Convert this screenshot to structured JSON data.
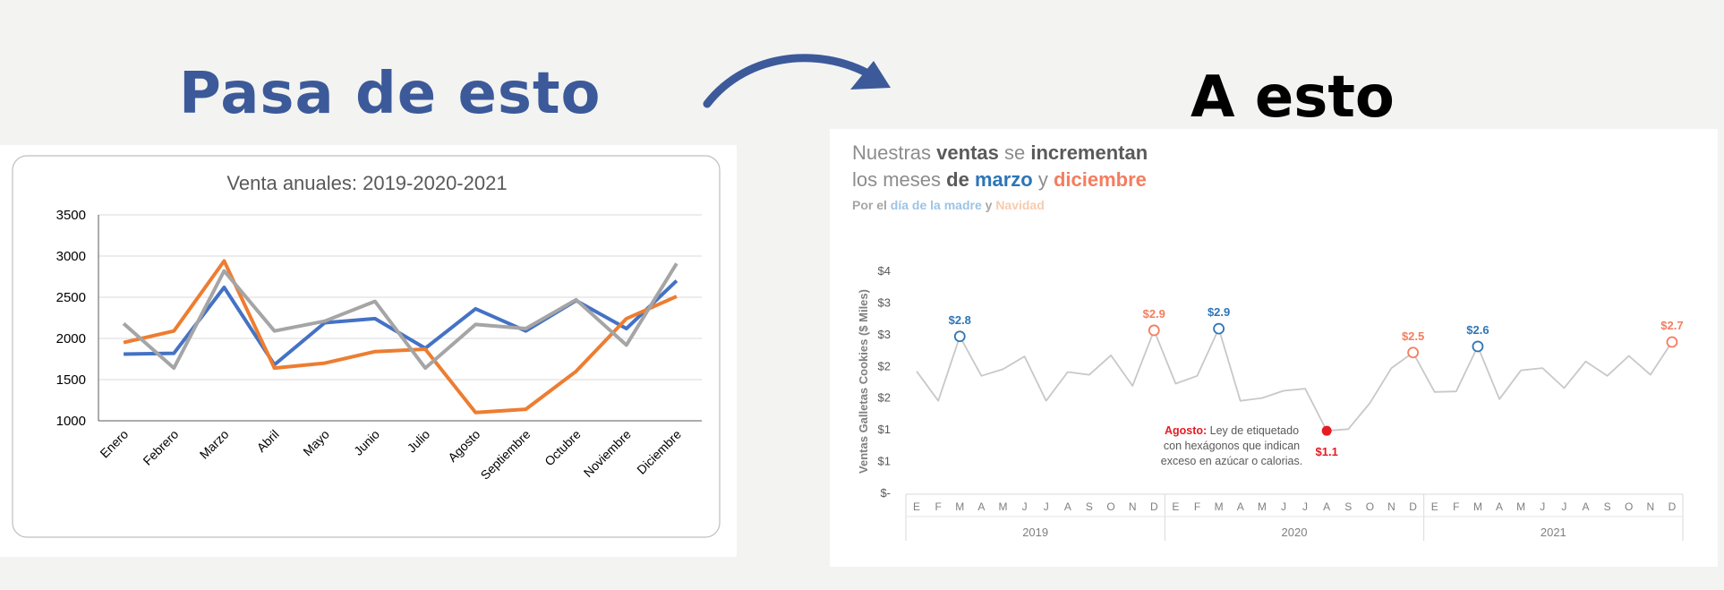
{
  "headings": {
    "left": "Pasa de esto",
    "right": "A esto"
  },
  "colors": {
    "heading_blue": "#3c5a9a",
    "series_2019": "#4472c4",
    "series_2020": "#ed7d31",
    "series_2021": "#a5a5a5",
    "marzo_blue": "#2e75b6",
    "diciembre_orange": "#f47d5f",
    "grey_line": "#c8c8c8",
    "agosto_red": "#e51c23"
  },
  "story_text": {
    "line1": [
      "Nuestras ",
      "ventas",
      " se ",
      "incrementan"
    ],
    "line2": [
      "los meses ",
      "de ",
      "marzo",
      " y ",
      "diciembre"
    ],
    "line3": [
      "Por el ",
      "día de la madre",
      " y ",
      "Navidad"
    ]
  },
  "chart_data": [
    {
      "type": "line",
      "title": "Venta anuales: 2019-2020-2021",
      "categories": [
        "Enero",
        "Febrero",
        "Marzo",
        "Abril",
        "Mayo",
        "Junio",
        "Julio",
        "Agosto",
        "Septiembre",
        "Octubre",
        "Noviembre",
        "Diciembre"
      ],
      "series": [
        {
          "name": "2019",
          "values": [
            1810,
            1820,
            2620,
            1680,
            2190,
            2240,
            1880,
            2360,
            2090,
            2460,
            2120,
            2700
          ]
        },
        {
          "name": "2020",
          "values": [
            1950,
            2090,
            2940,
            1640,
            1700,
            1840,
            1870,
            1100,
            1140,
            1600,
            2240,
            2510
          ]
        },
        {
          "name": "2021",
          "values": [
            2180,
            1640,
            2820,
            2090,
            2210,
            2450,
            1640,
            2170,
            2120,
            2470,
            1920,
            2910
          ]
        }
      ],
      "ylim": [
        1000,
        3500
      ],
      "yticks": [
        "1000",
        "1500",
        "2000",
        "2500",
        "3000",
        "3500"
      ],
      "grid": true,
      "legend": "none"
    },
    {
      "type": "line",
      "title": "",
      "ylabel": "Ventas Galletas Cookies ($ Miles)",
      "ytick_labels": [
        "$-",
        "$1",
        "$1",
        "$2",
        "$2",
        "$3",
        "$3",
        "$4"
      ],
      "ylim": [
        0,
        4
      ],
      "x_month_labels": [
        "E",
        "F",
        "M",
        "A",
        "M",
        "J",
        "J",
        "A",
        "S",
        "O",
        "N",
        "D",
        "E",
        "F",
        "M",
        "A",
        "M",
        "J",
        "J",
        "A",
        "S",
        "O",
        "N",
        "D",
        "E",
        "F",
        "M",
        "A",
        "M",
        "J",
        "J",
        "A",
        "S",
        "O",
        "N",
        "D"
      ],
      "years": [
        "2019",
        "2020",
        "2021"
      ],
      "values": [
        2.18,
        1.65,
        2.81,
        2.1,
        2.22,
        2.45,
        1.65,
        2.17,
        2.12,
        2.47,
        1.92,
        2.92,
        1.96,
        2.1,
        2.95,
        1.65,
        1.7,
        1.83,
        1.87,
        1.11,
        1.14,
        1.61,
        2.24,
        2.52,
        1.81,
        1.82,
        2.63,
        1.68,
        2.2,
        2.24,
        1.88,
        2.36,
        2.1,
        2.46,
        2.12,
        2.71
      ],
      "highlights": [
        {
          "index": 2,
          "label": "$2.8",
          "group": "marzo"
        },
        {
          "index": 11,
          "label": "$2.9",
          "group": "diciembre"
        },
        {
          "index": 14,
          "label": "$2.9",
          "group": "marzo"
        },
        {
          "index": 19,
          "label": "$1.1",
          "group": "agosto"
        },
        {
          "index": 23,
          "label": "$2.5",
          "group": "diciembre"
        },
        {
          "index": 26,
          "label": "$2.6",
          "group": "marzo"
        },
        {
          "index": 35,
          "label": "$2.7",
          "group": "diciembre"
        }
      ],
      "annotation": {
        "bold": "Agosto:",
        "lines": [
          " Ley de etiquetado",
          "con hexágonos que indican",
          "exceso en azúcar o calorias."
        ]
      },
      "grid": false,
      "legend": "none"
    }
  ]
}
